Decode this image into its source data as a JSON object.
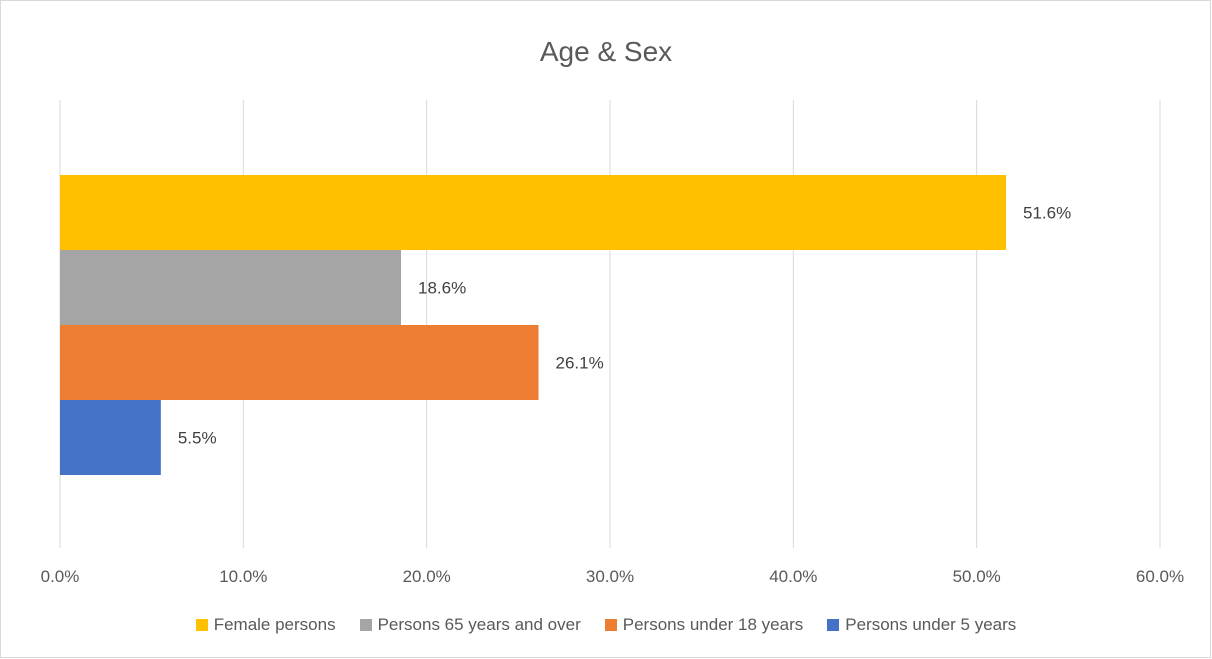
{
  "chart_data": {
    "type": "bar",
    "orientation": "horizontal",
    "title": "Age & Sex",
    "categories": [
      "Female persons",
      "Persons 65 years and over",
      "Persons under 18 years",
      "Persons under 5 years"
    ],
    "values": [
      51.6,
      18.6,
      26.1,
      5.5
    ],
    "data_labels": [
      "51.6%",
      "18.6%",
      "26.1%",
      "5.5%"
    ],
    "colors": [
      "#FFC000",
      "#A5A5A5",
      "#ED7D31",
      "#4472C4"
    ],
    "xlim": [
      0,
      60
    ],
    "x_ticks": [
      0,
      10,
      20,
      30,
      40,
      50,
      60
    ],
    "x_tick_labels": [
      "0.0%",
      "10.0%",
      "20.0%",
      "30.0%",
      "40.0%",
      "50.0%",
      "60.0%"
    ],
    "grid": true,
    "legend_position": "bottom",
    "legend": [
      {
        "label": "Female persons",
        "color": "#FFC000"
      },
      {
        "label": "Persons 65 years and over",
        "color": "#A5A5A5"
      },
      {
        "label": "Persons under 18 years",
        "color": "#ED7D31"
      },
      {
        "label": "Persons under 5 years",
        "color": "#4472C4"
      }
    ]
  }
}
